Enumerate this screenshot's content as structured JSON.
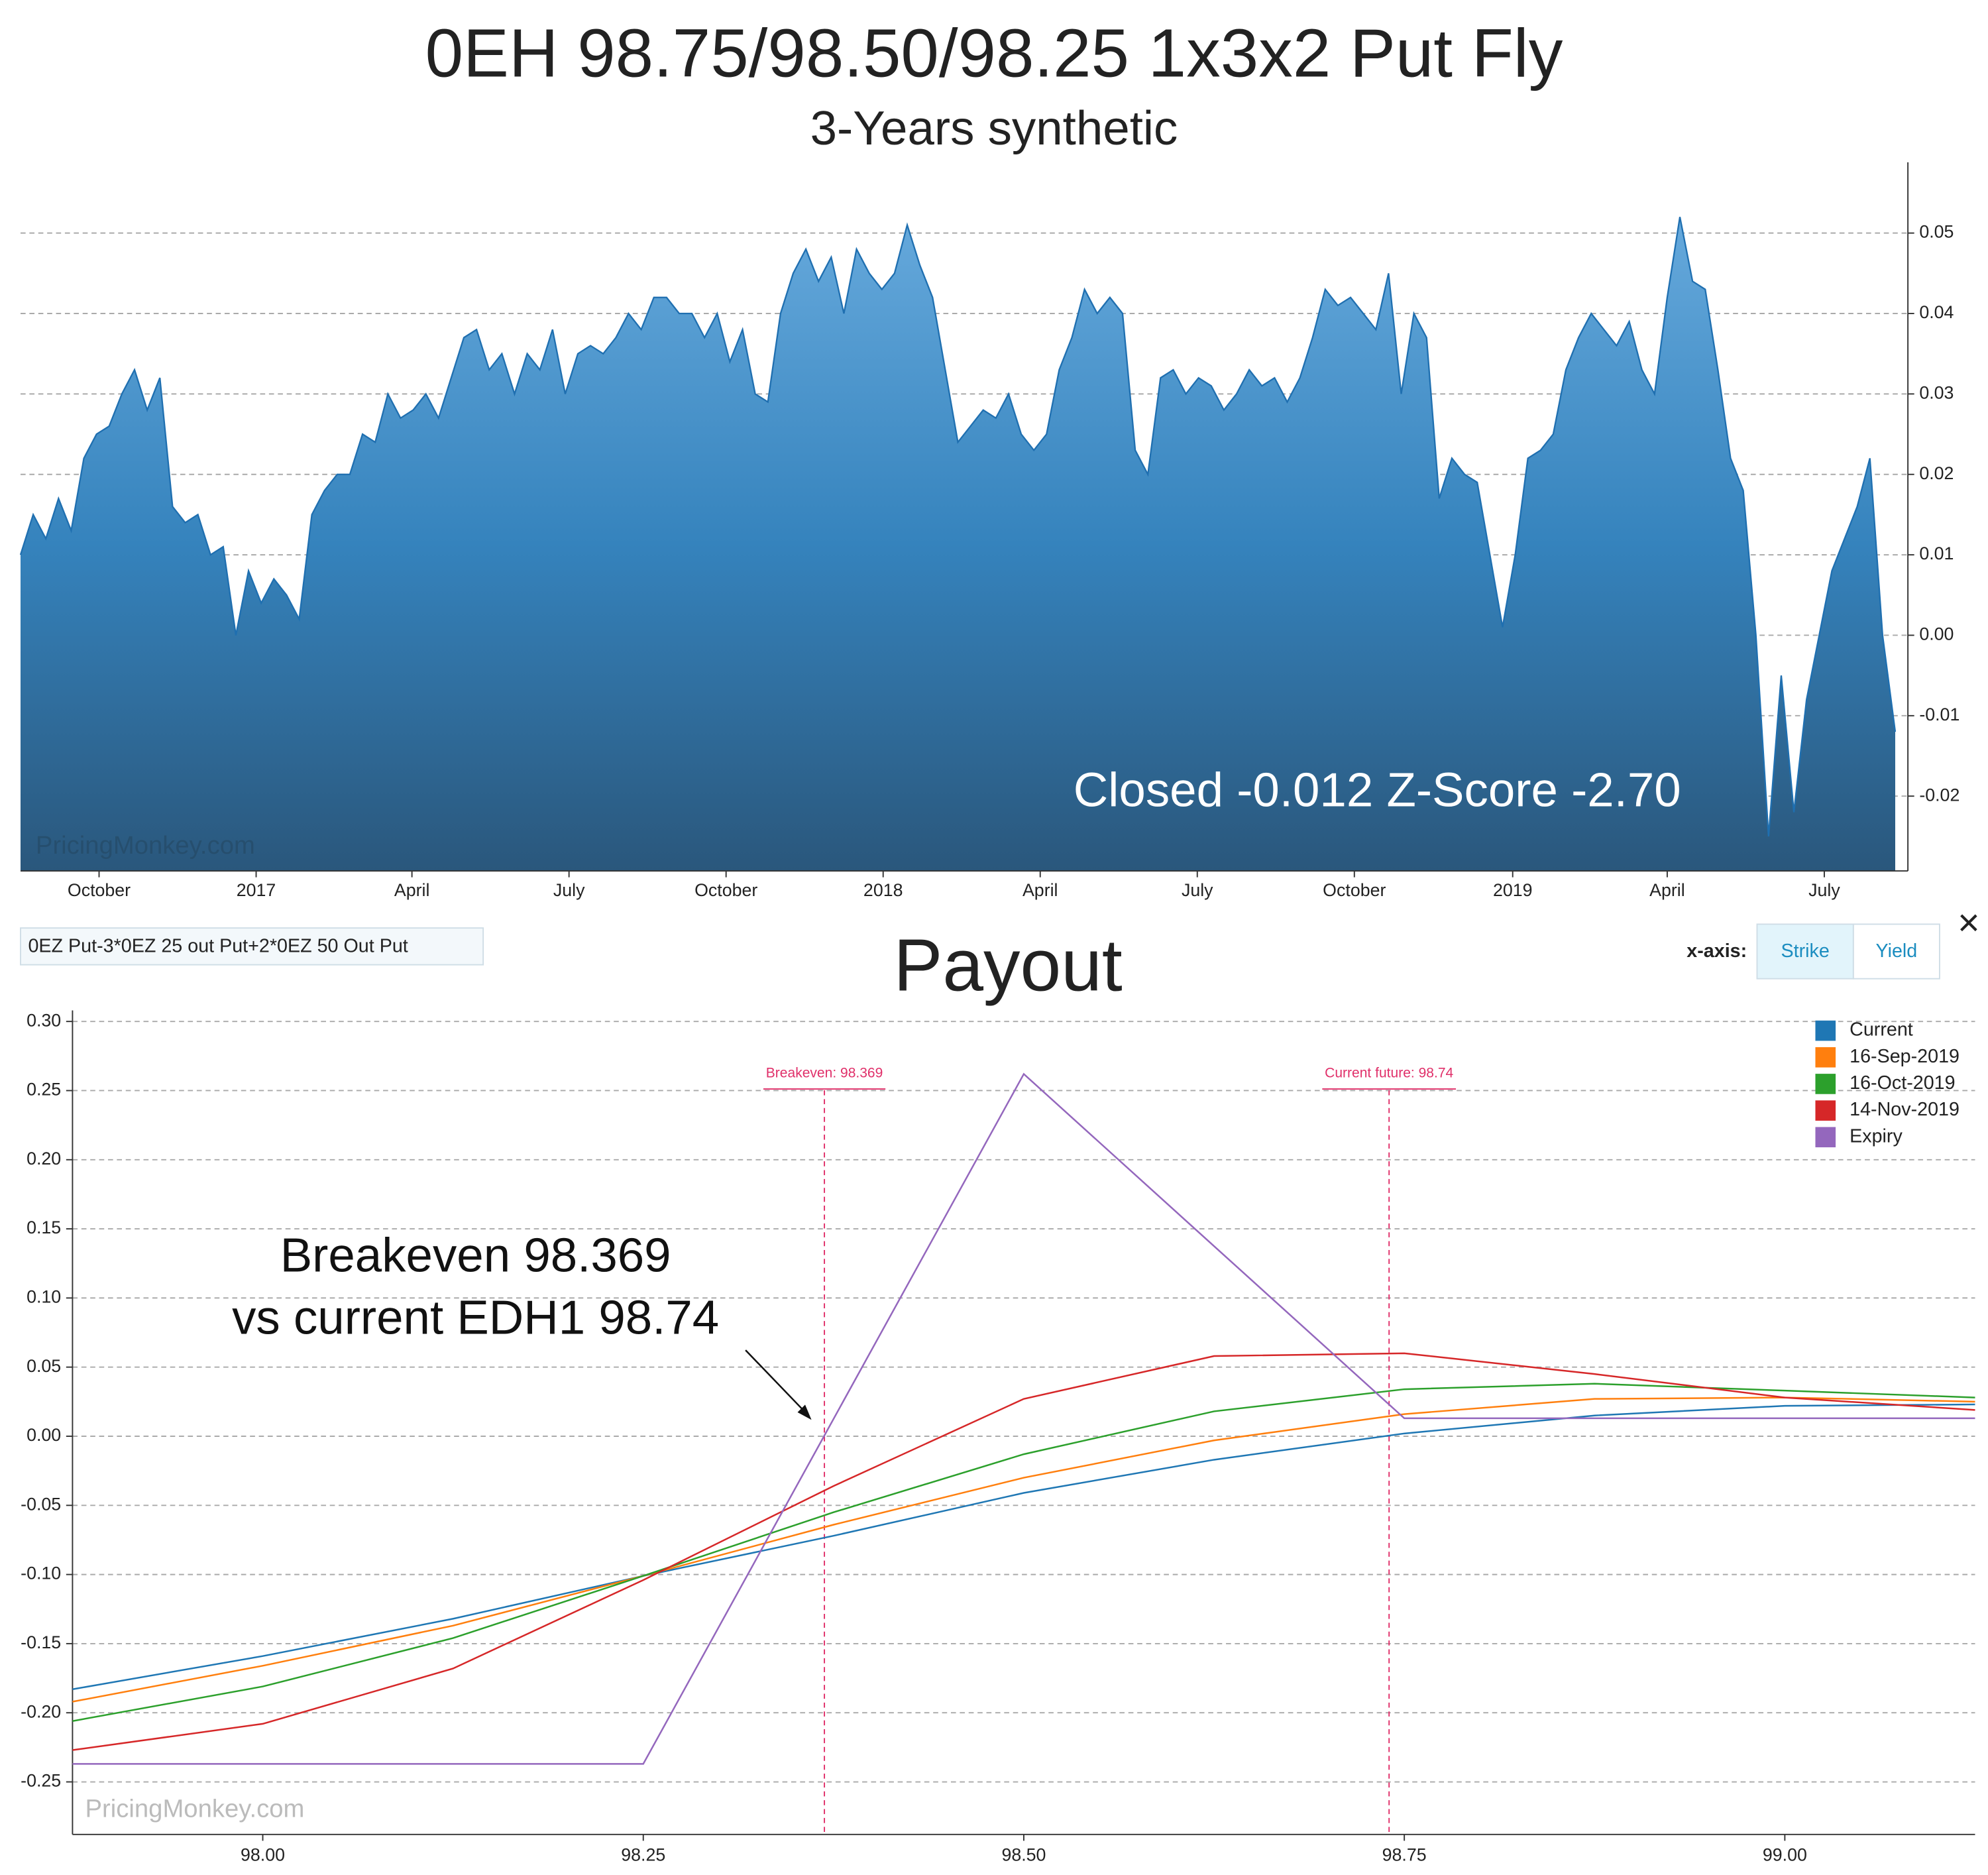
{
  "page": {
    "formula": "0EZ Put-3*0EZ 25 out Put+2*0EZ 50 Out Put",
    "xaxis_label": "x-axis:",
    "buttons": [
      "Strike",
      "Yield"
    ],
    "close": "×"
  },
  "chart_data": [
    {
      "type": "area",
      "title": "0EH 98.75/98.50/98.25 1x3x2 Put Fly",
      "subtitle": "3-Years synthetic",
      "annotation": "Closed -0.012 Z-Score -2.70",
      "watermark": "PricingMonkey.com",
      "color": "#1f6fb0",
      "values": [
        0.01,
        0.015,
        0.012,
        0.017,
        0.013,
        0.022,
        0.025,
        0.026,
        0.03,
        0.033,
        0.028,
        0.032,
        0.016,
        0.014,
        0.015,
        0.01,
        0.011,
        0.0,
        0.008,
        0.004,
        0.007,
        0.005,
        0.002,
        0.015,
        0.018,
        0.02,
        0.02,
        0.025,
        0.024,
        0.03,
        0.027,
        0.028,
        0.03,
        0.027,
        0.032,
        0.037,
        0.038,
        0.033,
        0.035,
        0.03,
        0.035,
        0.033,
        0.038,
        0.03,
        0.035,
        0.036,
        0.035,
        0.037,
        0.04,
        0.038,
        0.042,
        0.042,
        0.04,
        0.04,
        0.037,
        0.04,
        0.034,
        0.038,
        0.03,
        0.029,
        0.04,
        0.045,
        0.048,
        0.044,
        0.047,
        0.04,
        0.048,
        0.045,
        0.043,
        0.045,
        0.051,
        0.046,
        0.042,
        0.033,
        0.024,
        0.026,
        0.028,
        0.027,
        0.03,
        0.025,
        0.023,
        0.025,
        0.033,
        0.037,
        0.043,
        0.04,
        0.042,
        0.04,
        0.023,
        0.02,
        0.032,
        0.033,
        0.03,
        0.032,
        0.031,
        0.028,
        0.03,
        0.033,
        0.031,
        0.032,
        0.029,
        0.032,
        0.037,
        0.043,
        0.041,
        0.042,
        0.04,
        0.038,
        0.045,
        0.03,
        0.04,
        0.037,
        0.017,
        0.022,
        0.02,
        0.019,
        0.01,
        0.001,
        0.01,
        0.022,
        0.023,
        0.025,
        0.033,
        0.037,
        0.04,
        0.038,
        0.036,
        0.039,
        0.033,
        0.03,
        0.042,
        0.052,
        0.044,
        0.043,
        0.033,
        0.022,
        0.018,
        0.0,
        -0.025,
        -0.005,
        -0.022,
        -0.008,
        0.0,
        0.008,
        0.012,
        0.016,
        0.022,
        0.0,
        -0.012
      ],
      "xlim": [
        0,
        149
      ],
      "xticks": [
        {
          "value": 6.2,
          "label": "October"
        },
        {
          "value": 18.6,
          "label": "2017"
        },
        {
          "value": 30.9,
          "label": "April"
        },
        {
          "value": 43.3,
          "label": "July"
        },
        {
          "value": 55.7,
          "label": "October"
        },
        {
          "value": 68.1,
          "label": "2018"
        },
        {
          "value": 80.5,
          "label": "April"
        },
        {
          "value": 92.9,
          "label": "July"
        },
        {
          "value": 105.3,
          "label": "October"
        },
        {
          "value": 117.8,
          "label": "2019"
        },
        {
          "value": 130.0,
          "label": "April"
        },
        {
          "value": 142.4,
          "label": "July"
        }
      ],
      "ylim": [
        -0.0293,
        0.0588
      ],
      "yticks": [
        -0.02,
        -0.01,
        {
          "value": 0,
          "label": "0.00"
        },
        0.01,
        0.02,
        0.03,
        0.04,
        0.05
      ],
      "grid": true
    },
    {
      "type": "line",
      "title": "Payout",
      "watermark": "PricingMonkey.com",
      "x": [
        97.875,
        98.0,
        98.125,
        98.25,
        98.375,
        98.5,
        98.625,
        98.75,
        98.875,
        99.0,
        99.125
      ],
      "series": [
        {
          "name": "Current",
          "color": "#1f77b4",
          "values": [
            -0.183,
            -0.159,
            -0.132,
            -0.101,
            -0.072,
            -0.041,
            -0.017,
            0.002,
            0.015,
            0.022,
            0.023
          ]
        },
        {
          "name": "16-Sep-2019",
          "color": "#ff7f0e",
          "values": [
            -0.192,
            -0.166,
            -0.137,
            -0.101,
            -0.064,
            -0.03,
            -0.003,
            0.016,
            0.027,
            0.028,
            0.025
          ]
        },
        {
          "name": "16-Oct-2019",
          "color": "#2ca02c",
          "values": [
            -0.206,
            -0.181,
            -0.146,
            -0.101,
            -0.055,
            -0.013,
            0.018,
            0.034,
            0.038,
            0.033,
            0.028
          ]
        },
        {
          "name": "14-Nov-2019",
          "color": "#d62728",
          "values": [
            -0.227,
            -0.208,
            -0.168,
            -0.104,
            -0.036,
            0.027,
            0.058,
            0.06,
            0.045,
            0.028,
            0.019
          ]
        },
        {
          "name": "Expiry",
          "color": "#9467bd",
          "values": [
            -0.237,
            -0.237,
            -0.237,
            -0.237,
            0.0125,
            0.262,
            0.1375,
            0.013,
            0.013,
            0.013,
            0.013
          ]
        }
      ],
      "reference_lines": [
        {
          "label": "Breakeven: 98.369",
          "x": 98.369
        },
        {
          "label": "Current future: 98.74",
          "x": 98.74
        }
      ],
      "annotation": [
        "Breakeven 98.369",
        "vs current EDH1 98.74"
      ],
      "xlim": [
        97.875,
        99.125
      ],
      "xticks": [
        {
          "value": 98.0,
          "label": "98.00"
        },
        98.25,
        {
          "value": 98.5,
          "label": "98.50"
        },
        98.75,
        {
          "value": 99.0,
          "label": "99.00"
        }
      ],
      "ylim": [
        -0.288,
        0.308
      ],
      "yticks": [
        {
          "value": -0.25,
          "label": "-0.25"
        },
        {
          "value": -0.2,
          "label": "-0.20"
        },
        {
          "value": -0.15,
          "label": "-0.15"
        },
        {
          "value": -0.1,
          "label": "-0.10"
        },
        {
          "value": -0.05,
          "label": "-0.05"
        },
        {
          "value": 0,
          "label": "0.00"
        },
        {
          "value": 0.05,
          "label": "0.05"
        },
        {
          "value": 0.1,
          "label": "0.10"
        },
        {
          "value": 0.15,
          "label": "0.15"
        },
        {
          "value": 0.2,
          "label": "0.20"
        },
        {
          "value": 0.25,
          "label": "0.25"
        },
        {
          "value": 0.3,
          "label": "0.30"
        }
      ],
      "grid": true,
      "legend": "top-right"
    }
  ]
}
